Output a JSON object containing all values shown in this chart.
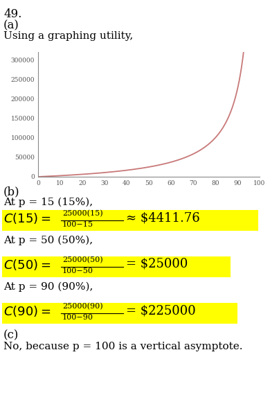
{
  "title_number": "49.",
  "part_a_label": "(a)",
  "part_a_text": "Using a graphing utility,",
  "curve_color": "#c87878",
  "curve_linewidth": 1.3,
  "xlim": [
    0,
    100
  ],
  "ylim": [
    0,
    320000
  ],
  "xticks": [
    0,
    10,
    20,
    30,
    40,
    50,
    60,
    70,
    80,
    90,
    100
  ],
  "yticks": [
    0,
    50000,
    100000,
    150000,
    200000,
    250000,
    300000
  ],
  "ytick_labels": [
    "0",
    "50000",
    "100000",
    "150000",
    "200000",
    "250000",
    "300000"
  ],
  "part_b_label": "(b)",
  "highlight_color": "#ffff00",
  "text_color": "#000000",
  "part_c_label": "(c)",
  "part_c_text": "No, because p = 100 is a vertical asymptote.",
  "background_color": "#ffffff",
  "font_family": "DejaVu Serif",
  "fig_width": 3.9,
  "fig_height": 5.8,
  "dpi": 100
}
